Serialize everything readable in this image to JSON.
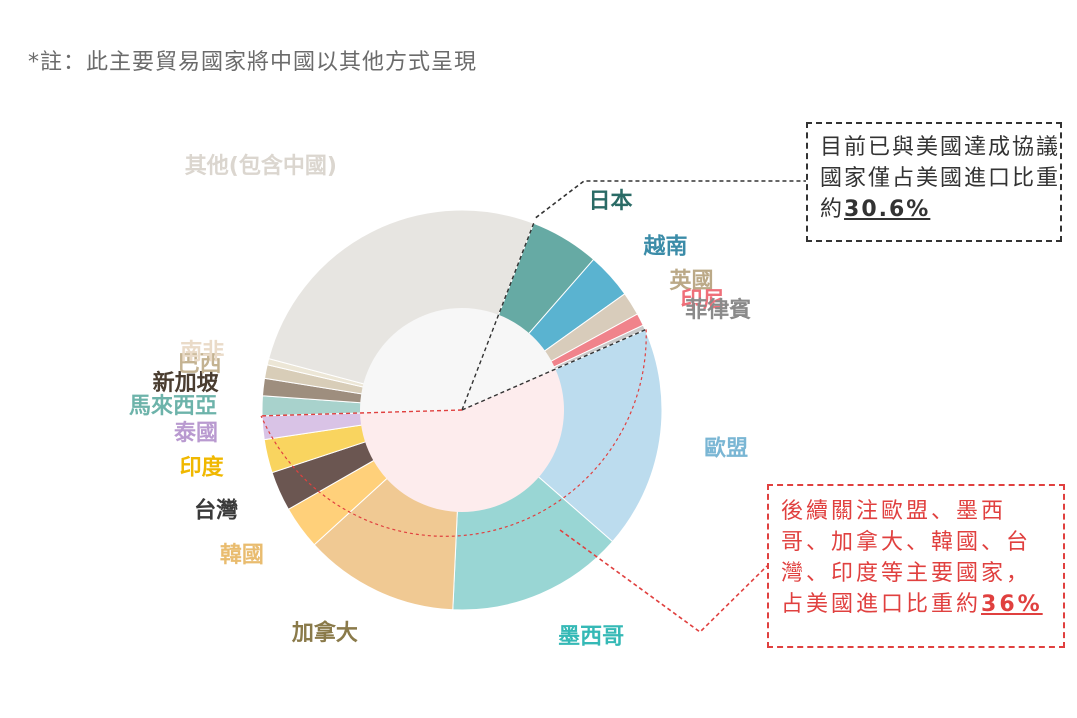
{
  "note": "*註：此主要貿易國家將中國以其他方式呈現",
  "chart_data": {
    "type": "pie",
    "title": "",
    "start_angle_deg": 21,
    "direction": "clockwise",
    "slices": [
      {
        "label": "日本",
        "value": 5.6,
        "color": "#66aaa4",
        "label_color": "#2a6b66"
      },
      {
        "label": "越南",
        "value": 3.7,
        "color": "#5ab3d0",
        "label_color": "#3b8ca8"
      },
      {
        "label": "英國",
        "value": 1.9,
        "color": "#d8ccbb",
        "label_color": "#bba987"
      },
      {
        "label": "印尼",
        "value": 1.0,
        "color": "#f0838b",
        "label_color": "#ef6f79"
      },
      {
        "label": "菲律賓",
        "value": 0.4,
        "color": "#c9c9c9",
        "label_color": "#8a8a8a"
      },
      {
        "label": "歐盟",
        "value": 18.0,
        "color": "#bcdcee",
        "label_color": "#7ab6d4"
      },
      {
        "label": "墨西哥",
        "value": 14.3,
        "color": "#99d6d4",
        "label_color": "#35b9b6"
      },
      {
        "label": "加拿大",
        "value": 12.5,
        "color": "#f0c993",
        "label_color": "#8a7a4a"
      },
      {
        "label": "韓國",
        "value": 3.5,
        "color": "#ffd07a",
        "label_color": "#e9bc6f"
      },
      {
        "label": "台灣",
        "value": 3.2,
        "color": "#6b5651",
        "label_color": "#3a3a3a"
      },
      {
        "label": "印度",
        "value": 2.7,
        "color": "#f9d45f",
        "label_color": "#f0b800"
      },
      {
        "label": "泰國",
        "value": 1.9,
        "color": "#d9c3e6",
        "label_color": "#b99ad0"
      },
      {
        "label": "馬來西亞",
        "value": 1.6,
        "color": "#a8d2cc",
        "label_color": "#6db3aa"
      },
      {
        "label": "新加坡",
        "value": 1.4,
        "color": "#9e8e7e",
        "label_color": "#4a3d30"
      },
      {
        "label": "巴西",
        "value": 1.1,
        "color": "#d8cdb8",
        "label_color": "#c4b392"
      },
      {
        "label": "南非",
        "value": 0.5,
        "color": "#ece6d6",
        "label_color": "#eadbc8"
      },
      {
        "label": "其他(包含中國)",
        "value": 26.7,
        "color": "#e7e5e1",
        "label_color": "#dbd6cf"
      }
    ],
    "inner_groups": [
      {
        "name": "已與美國達成協議國家",
        "share": 30.6,
        "color": "#f7f7f7"
      },
      {
        "name": "後續關注主要國家",
        "share": 36,
        "color": "#fdeced"
      },
      {
        "name": "其他",
        "share": 33.4,
        "color": "#f7f7f7"
      }
    ]
  },
  "callouts": {
    "signed": {
      "text": "目前已與美國達成協議國家僅占美國進口比重約",
      "value": "30.6%"
    },
    "watch": {
      "text": "後續關注歐盟、墨西哥、加拿大、韓國、台灣、印度等主要國家，占美國進口比重約",
      "value": "36%"
    }
  }
}
